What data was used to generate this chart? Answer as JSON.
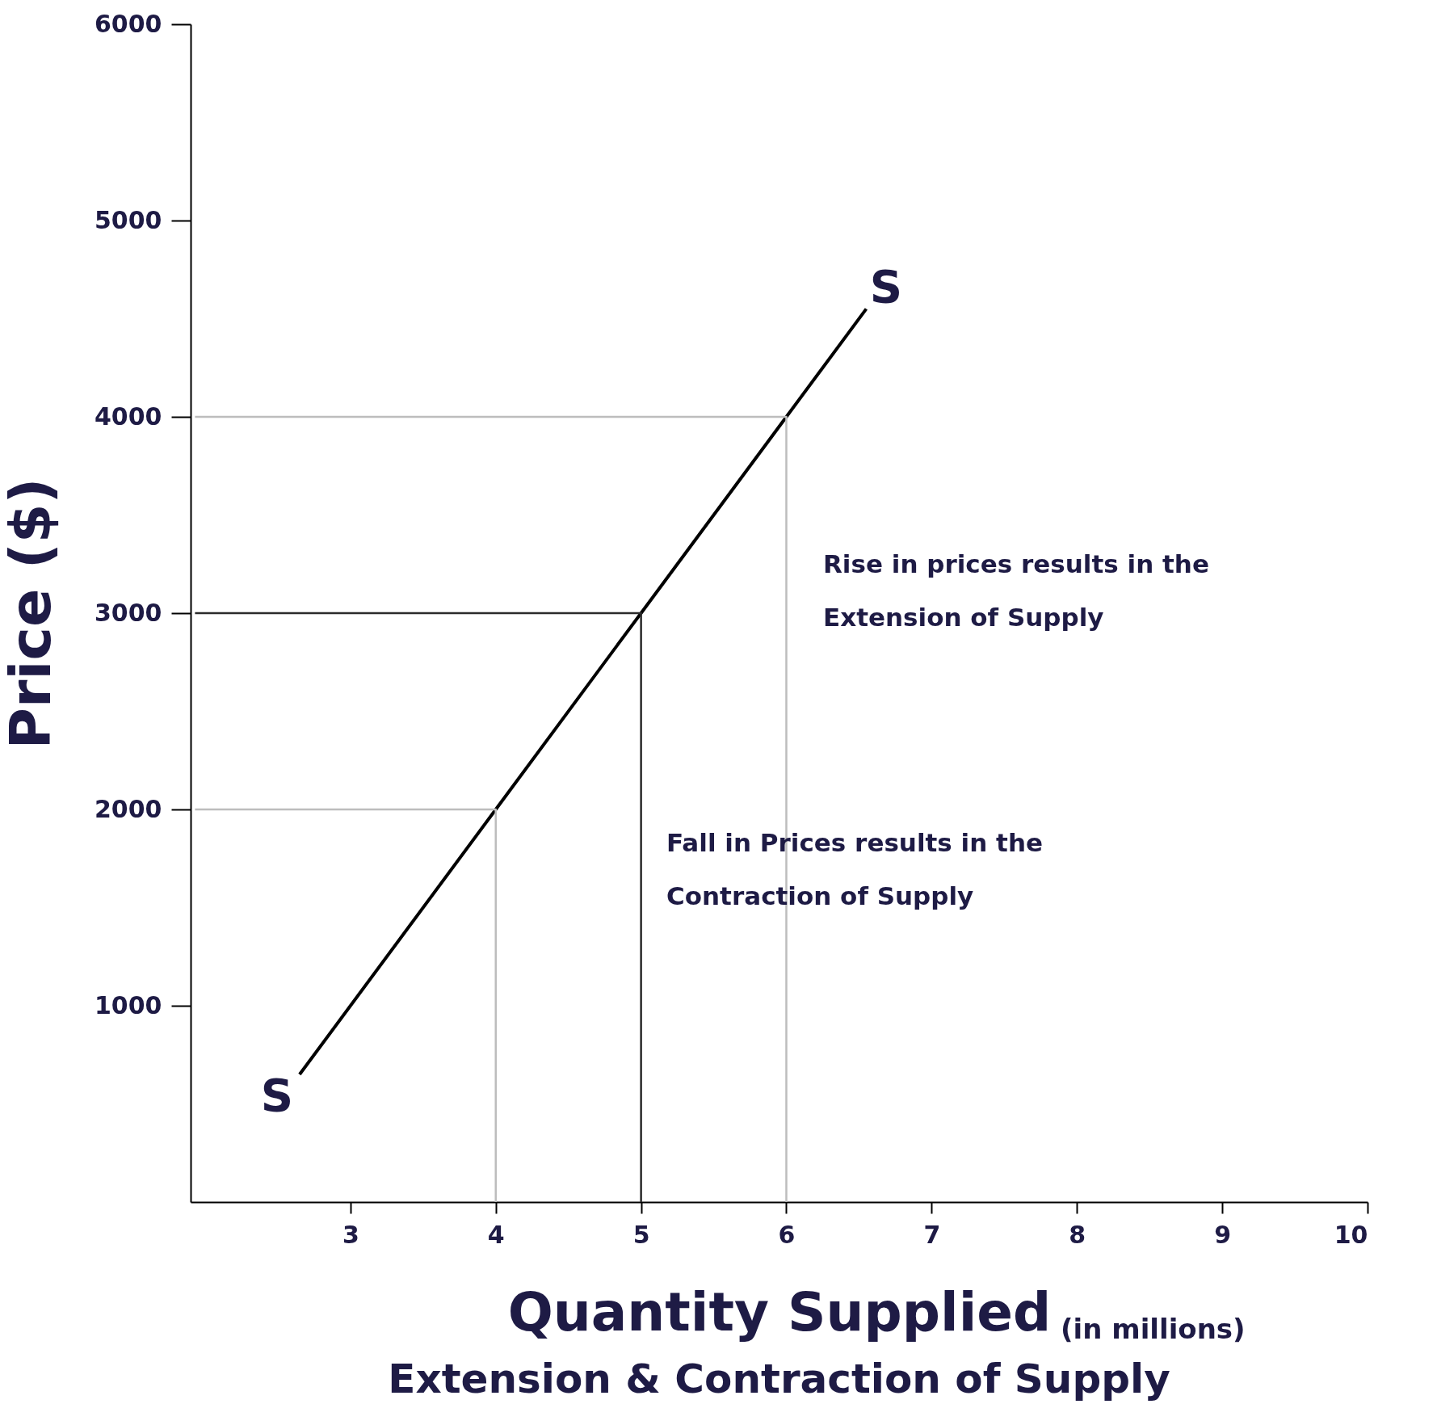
{
  "chart_data": {
    "type": "line",
    "title": "Extension & Contraction of Supply",
    "xlabel": "Quantity Supplied",
    "ylabel": "Price ($)",
    "xlim": [
      1.9,
      10
    ],
    "xticks": [
      3,
      4,
      5,
      6,
      7,
      8,
      9,
      10
    ],
    "ylim": [
      0,
      6000
    ],
    "yticks": [
      1000,
      2000,
      3000,
      4000,
      5000,
      6000
    ],
    "grid": false,
    "marker": "none",
    "line_style": "solid",
    "series": [
      {
        "color": "#000000",
        "x": [
          2.65,
          4,
          5,
          6,
          6.55
        ],
        "values": [
          650,
          2000,
          3000,
          4000,
          4550
        ]
      },
      {
        "color": "#bdbdbd",
        "x": [
          1.93,
          6,
          6
        ],
        "values": [
          4000,
          4000,
          0
        ]
      },
      {
        "color": "#2b2b2b",
        "x": [
          1.93,
          5,
          5
        ],
        "values": [
          3000,
          3000,
          0
        ]
      },
      {
        "color": "#bdbdbd",
        "x": [
          1.93,
          4,
          4
        ],
        "values": [
          2000,
          2000,
          0
        ]
      }
    ],
    "annotations": [
      "S",
      "S",
      "Rise in prices results in the\nExtension of Supply",
      "Fall in Prices results in the\nContraction of Supply",
      "(in millions)"
    ]
  }
}
